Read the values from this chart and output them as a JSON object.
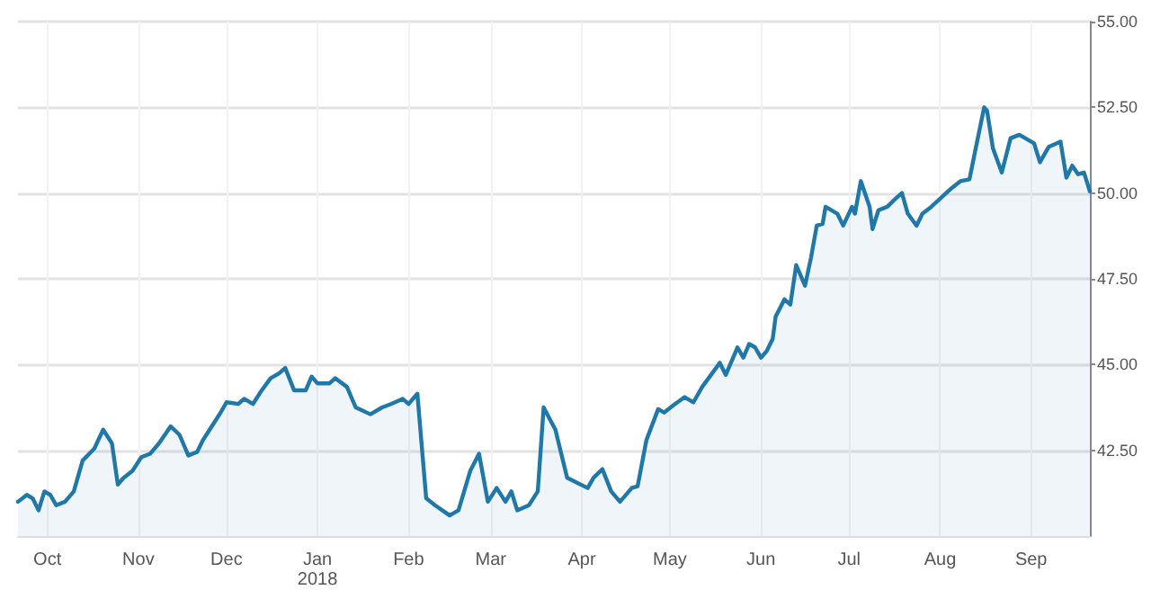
{
  "chart_data": {
    "type": "area",
    "x": [
      "2017-09-21",
      "2017-09-24",
      "2017-09-26",
      "2017-09-28",
      "2017-09-30",
      "2017-10-02",
      "2017-10-04",
      "2017-10-07",
      "2017-10-10",
      "2017-10-13",
      "2017-10-17",
      "2017-10-20",
      "2017-10-23",
      "2017-10-25",
      "2017-10-27",
      "2017-10-30",
      "2017-11-02",
      "2017-11-05",
      "2017-11-08",
      "2017-11-12",
      "2017-11-15",
      "2017-11-18",
      "2017-11-21",
      "2017-11-23",
      "2017-11-26",
      "2017-11-29",
      "2017-12-01",
      "2017-12-05",
      "2017-12-07",
      "2017-12-10",
      "2017-12-13",
      "2017-12-16",
      "2017-12-19",
      "2017-12-21",
      "2017-12-24",
      "2017-12-28",
      "2017-12-30",
      "2018-01-01",
      "2018-01-05",
      "2018-01-07",
      "2018-01-11",
      "2018-01-14",
      "2018-01-19",
      "2018-01-23",
      "2018-01-26",
      "2018-01-30",
      "2018-02-01",
      "2018-02-04",
      "2018-02-07",
      "2018-02-10",
      "2018-02-15",
      "2018-02-18",
      "2018-02-22",
      "2018-02-25",
      "2018-02-28",
      "2018-03-03",
      "2018-03-06",
      "2018-03-08",
      "2018-03-10",
      "2018-03-14",
      "2018-03-17",
      "2018-03-19",
      "2018-03-23",
      "2018-03-27",
      "2018-04-03",
      "2018-04-05",
      "2018-04-08",
      "2018-04-11",
      "2018-04-14",
      "2018-04-18",
      "2018-04-20",
      "2018-04-23",
      "2018-04-27",
      "2018-04-29",
      "2018-05-02",
      "2018-05-06",
      "2018-05-09",
      "2018-05-12",
      "2018-05-18",
      "2018-05-20",
      "2018-05-24",
      "2018-05-26",
      "2018-05-28",
      "2018-05-30",
      "2018-06-01",
      "2018-06-03",
      "2018-06-05",
      "2018-06-06",
      "2018-06-09",
      "2018-06-11",
      "2018-06-13",
      "2018-06-16",
      "2018-06-18",
      "2018-06-20",
      "2018-06-22",
      "2018-06-23",
      "2018-06-27",
      "2018-06-29",
      "2018-07-02",
      "2018-07-03",
      "2018-07-05",
      "2018-07-08",
      "2018-07-09",
      "2018-07-11",
      "2018-07-14",
      "2018-07-17",
      "2018-07-19",
      "2018-07-21",
      "2018-07-24",
      "2018-07-26",
      "2018-07-29",
      "2018-08-05",
      "2018-08-08",
      "2018-08-11",
      "2018-08-13",
      "2018-08-16",
      "2018-08-17",
      "2018-08-19",
      "2018-08-22",
      "2018-08-25",
      "2018-08-28",
      "2018-09-02",
      "2018-09-04",
      "2018-09-07",
      "2018-09-11",
      "2018-09-13",
      "2018-09-15",
      "2018-09-17",
      "2018-09-19",
      "2018-09-21"
    ],
    "series": [
      {
        "color": "#1f78a8",
        "values": [
          41.0,
          41.2,
          41.1,
          40.75,
          41.3,
          41.2,
          40.9,
          41.0,
          41.3,
          42.2,
          42.55,
          43.1,
          42.7,
          41.5,
          41.7,
          41.9,
          42.3,
          42.4,
          42.7,
          43.2,
          42.95,
          42.35,
          42.45,
          42.8,
          43.2,
          43.6,
          43.9,
          43.85,
          44.0,
          43.85,
          44.25,
          44.6,
          44.75,
          44.9,
          44.25,
          44.25,
          44.65,
          44.45,
          44.45,
          44.6,
          44.35,
          43.75,
          43.55,
          43.75,
          43.85,
          44.0,
          43.85,
          44.15,
          41.1,
          40.9,
          40.6,
          40.75,
          41.9,
          42.4,
          41.0,
          41.4,
          41.0,
          41.3,
          40.75,
          40.9,
          41.3,
          43.75,
          43.1,
          41.7,
          41.4,
          41.7,
          41.95,
          41.3,
          41.0,
          41.4,
          41.45,
          42.8,
          43.7,
          43.6,
          43.8,
          44.05,
          43.9,
          44.35,
          45.05,
          44.7,
          45.5,
          45.2,
          45.6,
          45.5,
          45.2,
          45.4,
          45.75,
          46.4,
          46.9,
          46.75,
          47.9,
          47.3,
          48.1,
          49.05,
          49.1,
          49.6,
          49.4,
          49.05,
          49.6,
          49.4,
          50.35,
          49.6,
          48.95,
          49.5,
          49.6,
          49.85,
          50.0,
          49.4,
          49.05,
          49.4,
          49.6,
          50.15,
          50.35,
          50.4,
          51.25,
          52.5,
          52.4,
          51.3,
          50.6,
          51.6,
          51.7,
          51.45,
          50.9,
          51.35,
          51.5,
          50.45,
          50.8,
          50.55,
          50.6,
          50.05
        ]
      }
    ],
    "xlim": [
      "2017-09-21",
      "2018-09-21"
    ],
    "xticks": [
      {
        "value": "2017-10-01",
        "label": "Oct"
      },
      {
        "value": "2017-11-01",
        "label": "Nov"
      },
      {
        "value": "2017-12-01",
        "label": "Dec"
      },
      {
        "value": "2018-01-01",
        "label": "Jan\n2018"
      },
      {
        "value": "2018-02-01",
        "label": "Feb"
      },
      {
        "value": "2018-03-01",
        "label": "Mar"
      },
      {
        "value": "2018-04-01",
        "label": "Apr"
      },
      {
        "value": "2018-05-01",
        "label": "May"
      },
      {
        "value": "2018-06-01",
        "label": "Jun"
      },
      {
        "value": "2018-07-01",
        "label": "Jul"
      },
      {
        "value": "2018-08-01",
        "label": "Aug"
      },
      {
        "value": "2018-09-01",
        "label": "Sep"
      }
    ],
    "ylim": [
      40,
      55
    ],
    "yticks": [
      {
        "value": 42.5,
        "label": "42.50"
      },
      {
        "value": 45,
        "label": "45.00"
      },
      {
        "value": 47.5,
        "label": "47.50"
      },
      {
        "value": 50,
        "label": "50.00"
      },
      {
        "value": 52.5,
        "label": "52.50"
      },
      {
        "value": 55,
        "label": "55.00"
      }
    ],
    "grid": true,
    "marker": "none",
    "line_style": "solid"
  }
}
